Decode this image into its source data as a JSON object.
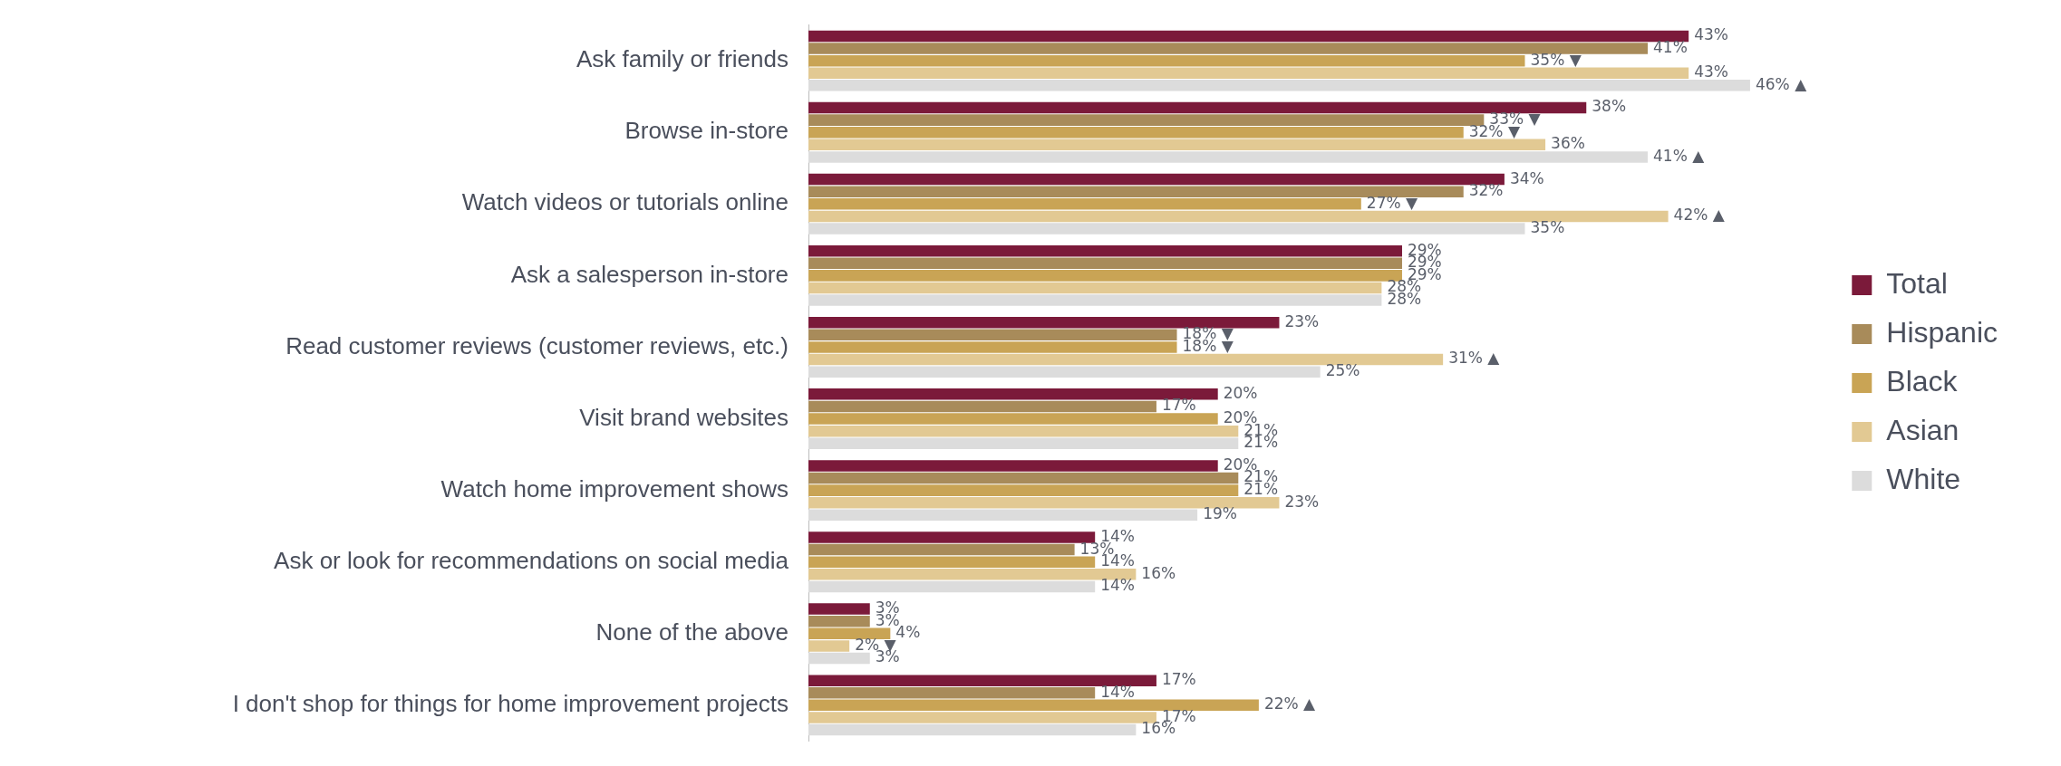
{
  "chart_data": {
    "type": "bar",
    "orientation": "horizontal",
    "tick_labels": "y",
    "legend": "right",
    "grid": false,
    "data_labels": true,
    "categories": [
      "Ask family or friends",
      "Browse in-store",
      "Watch videos or tutorials online",
      "Ask a salesperson in-store",
      "Read customer reviews (customer reviews, etc.)",
      "Visit brand websites",
      "Watch home improvement shows",
      "Ask or look for recommendations on social media",
      "None of the above",
      "I don't shop for things for home improvement projects"
    ],
    "series": [
      {
        "name": "Total",
        "color": "#7b1a3a",
        "values": [
          43,
          38,
          34,
          29,
          23,
          20,
          20,
          14,
          3,
          17
        ],
        "value_labels": [
          "43%",
          "38%",
          "34%",
          "29%",
          "23%",
          "20%",
          "20%",
          "14%",
          "3%",
          "17%"
        ]
      },
      {
        "name": "Hispanic",
        "color": "#a88b5a",
        "values": [
          41,
          33,
          32,
          29,
          18,
          17,
          21,
          13,
          3,
          14
        ],
        "value_labels": [
          "41%",
          "33% ▼",
          "32%",
          "29%",
          "18% ▼",
          "17%",
          "21%",
          "13%",
          "3%",
          "14%"
        ]
      },
      {
        "name": "Black",
        "color": "#c9a455",
        "values": [
          35,
          32,
          27,
          29,
          18,
          20,
          21,
          14,
          4,
          22
        ],
        "value_labels": [
          "35% ▼",
          "32% ▼",
          "27% ▼",
          "29%",
          "18% ▼",
          "20%",
          "21%",
          "14%",
          "4%",
          "22% ▲"
        ]
      },
      {
        "name": "Asian",
        "color": "#e2c993",
        "values": [
          43,
          36,
          42,
          28,
          31,
          21,
          23,
          16,
          2,
          17
        ],
        "value_labels": [
          "43%",
          "36%",
          "42% ▲",
          "28%",
          "31% ▲",
          "21%",
          "23%",
          "16%",
          "2% ▼",
          "17%"
        ]
      },
      {
        "name": "White",
        "color": "#dcdcdc",
        "values": [
          46,
          41,
          35,
          28,
          25,
          21,
          19,
          14,
          3,
          16
        ],
        "value_labels": [
          "46% ▲",
          "41% ▲",
          "35%",
          "28%",
          "25%",
          "21%",
          "19%",
          "14%",
          "3%",
          "16%"
        ]
      }
    ]
  }
}
